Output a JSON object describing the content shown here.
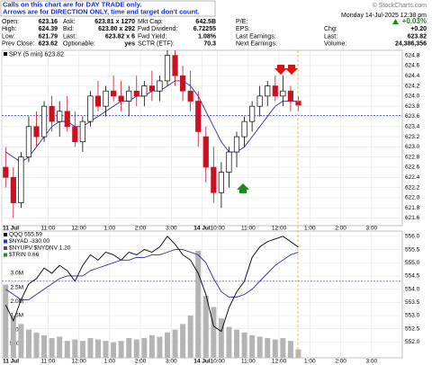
{
  "note": [
    "Calls on this chart are for DAY TRADE only.",
    "Arrows are for DIRECTION ONLY, time and target don't count."
  ],
  "watermark": "© StockCharts.com",
  "date": "Monday 14-Jul-2025 12:38 pm",
  "quote": [
    [
      [
        "Open:",
        "623.16"
      ],
      [
        "Ask:",
        "623.81 x 1270"
      ],
      [
        "Mkt Cap:",
        "642.5B"
      ],
      [
        "P/E:"
      ],
      [
        "+0.03%"
      ]
    ],
    [
      [
        "High:",
        "624.39"
      ],
      [
        "Bid:",
        "623.80 x 292"
      ],
      [
        "Fwd Dividend:",
        "6.72255"
      ],
      [
        "EPS:"
      ],
      [
        "Chg:",
        "+0.20"
      ]
    ],
    [
      [
        "Low:",
        "621.79"
      ],
      [
        "Last:",
        "623.82 x 6"
      ],
      [
        "Fwd Yield:",
        "1.08%"
      ],
      [
        "Last Earnings:"
      ],
      [
        "Last:",
        "623.82"
      ]
    ],
    [
      [
        "Prev Close:",
        "623.62"
      ],
      [
        "Optionable:",
        "yes"
      ],
      [
        "SCTR (ETF):",
        "70.3"
      ],
      [
        "Next Earnings:"
      ],
      [
        "Volume:",
        "24,386,356"
      ]
    ]
  ],
  "chart_data": [
    {
      "type": "candlestick",
      "legend": "SPY (5 min) 623.82",
      "categories": [
        "11 Jul",
        null,
        null,
        null,
        null,
        null,
        "11:00",
        null,
        null,
        null,
        "12:00",
        null,
        null,
        null,
        "1:00",
        null,
        null,
        null,
        "2:00",
        null,
        null,
        null,
        "3:00",
        null,
        null,
        null,
        "14 Jul",
        null,
        "10:00",
        null,
        null,
        null,
        "11:00",
        null,
        null,
        null,
        "12:00",
        null,
        null,
        null,
        "1:00",
        null,
        null,
        null,
        "2:00",
        null,
        null,
        null,
        "3:00",
        null,
        null,
        null
      ],
      "open": [
        622.6,
        622.4,
        621.9,
        622.8,
        623.4,
        623.2,
        623.8,
        623.5,
        623.7,
        623.4,
        623.1,
        623.5,
        624.0,
        623.8,
        624.1,
        624.0,
        623.9,
        624.1,
        624.0,
        624.2,
        624.1,
        624.3,
        624.8,
        624.4,
        624.1,
        623.9,
        623.2,
        622.6,
        622.1,
        622.5,
        622.9,
        623.2,
        623.5,
        623.8,
        624.0,
        624.2,
        624.0,
        624.1,
        623.9,
        null,
        null,
        null,
        null,
        null,
        null,
        null,
        null,
        null,
        null,
        null,
        null,
        null
      ],
      "high": [
        623.0,
        622.6,
        622.9,
        623.6,
        623.7,
        623.9,
        624.0,
        623.9,
        624.0,
        623.7,
        623.6,
        624.1,
        624.3,
        624.2,
        624.4,
        624.3,
        624.2,
        624.4,
        624.3,
        624.5,
        624.4,
        624.9,
        624.9,
        624.6,
        624.5,
        624.1,
        623.4,
        623.0,
        622.7,
        623.0,
        623.3,
        623.6,
        623.9,
        624.2,
        624.3,
        624.4,
        624.4,
        624.2,
        624.0,
        null,
        null,
        null,
        null,
        null,
        null,
        null,
        null,
        null,
        null,
        null,
        null,
        null
      ],
      "low": [
        622.2,
        621.6,
        621.8,
        622.7,
        623.0,
        623.1,
        623.3,
        623.2,
        623.3,
        623.0,
        622.9,
        623.4,
        623.7,
        623.6,
        623.9,
        623.7,
        623.6,
        623.8,
        623.8,
        623.9,
        623.9,
        624.2,
        624.2,
        623.9,
        623.7,
        623.0,
        622.3,
        621.9,
        621.8,
        622.2,
        622.6,
        623.0,
        623.3,
        623.6,
        623.8,
        623.9,
        623.8,
        623.7,
        623.7,
        null,
        null,
        null,
        null,
        null,
        null,
        null,
        null,
        null,
        null,
        null,
        null,
        null
      ],
      "close": [
        622.4,
        621.9,
        622.8,
        623.4,
        623.2,
        623.8,
        623.5,
        623.7,
        623.4,
        623.1,
        623.5,
        624.0,
        623.8,
        624.1,
        624.0,
        623.9,
        624.1,
        624.0,
        624.2,
        624.1,
        624.3,
        624.8,
        624.4,
        624.1,
        623.9,
        623.3,
        622.6,
        622.1,
        622.5,
        622.9,
        623.2,
        623.5,
        623.8,
        624.0,
        624.2,
        624.0,
        624.1,
        623.9,
        623.82,
        null,
        null,
        null,
        null,
        null,
        null,
        null,
        null,
        null,
        null,
        null,
        null,
        null
      ],
      "up_color": "#000000",
      "down_color": "#cc1020",
      "series": [
        {
          "color": "#2a2aa8",
          "values": [
            622.9,
            622.8,
            622.7,
            622.8,
            623.0,
            623.2,
            623.4,
            623.5,
            623.5,
            623.4,
            623.4,
            623.5,
            623.6,
            623.7,
            623.8,
            623.9,
            623.9,
            624.0,
            624.0,
            624.1,
            624.1,
            624.2,
            624.3,
            624.3,
            624.2,
            624.0,
            623.7,
            623.4,
            623.1,
            622.9,
            622.9,
            623.0,
            623.2,
            623.4,
            623.6,
            623.8,
            623.9,
            623.9,
            623.9,
            null,
            null,
            null,
            null,
            null,
            null,
            null,
            null,
            null,
            null,
            null,
            null,
            null
          ]
        }
      ],
      "reference_line": 623.62,
      "reference_color": "#2a2ad0",
      "ylim": [
        621.45,
        624.9
      ],
      "yticks": [
        621.6,
        621.8,
        {
          "value": 622,
          "label": "622.0"
        },
        622.2,
        622.4,
        622.6,
        622.8,
        {
          "value": 623,
          "label": "623.0"
        },
        623.2,
        623.4,
        623.6,
        623.8,
        {
          "value": 624,
          "label": "624.0"
        },
        624.2,
        624.4,
        624.6,
        624.8
      ],
      "grid": true
    },
    {
      "type": "line",
      "legend": [
        {
          "text": "QQQ 555.59",
          "color": "#000000"
        },
        {
          "text": "$NYAD -330.00",
          "color": "#2a2ad0"
        },
        {
          "text": "$NYUPV:$NYDNV 1.20",
          "color": "#555555"
        },
        {
          "text": "$TRIN 0.66",
          "color": "#2a8a2a"
        }
      ],
      "categories": [
        "11 Jul",
        null,
        null,
        null,
        null,
        null,
        "11:00",
        null,
        null,
        null,
        "12:00",
        null,
        null,
        null,
        "1:00",
        null,
        null,
        null,
        "2:00",
        null,
        null,
        null,
        "3:00",
        null,
        null,
        null,
        "14 Jul",
        null,
        "10:00",
        null,
        null,
        null,
        "11:00",
        null,
        null,
        null,
        "12:00",
        null,
        null,
        null,
        "1:00",
        null,
        null,
        null,
        "2:00",
        null,
        null,
        null,
        "3:00",
        null,
        null,
        null
      ],
      "series": [
        {
          "color": "#b4b4b4",
          "axis": "y2",
          "kind": "bar",
          "values": [
            2600000,
            1500000,
            1200000,
            1000000,
            900000,
            800000,
            700000,
            750000,
            600000,
            650000,
            600000,
            700000,
            650000,
            600000,
            550000,
            600000,
            700000,
            650000,
            700000,
            800000,
            750000,
            900000,
            1000000,
            1200000,
            1500000,
            3800000,
            2200000,
            1800000,
            1400000,
            1100000,
            1000000,
            900000,
            800000,
            750000,
            700000,
            650000,
            700000,
            600000,
            300000,
            null,
            null,
            null,
            null,
            null,
            null,
            null,
            null,
            null,
            null,
            null,
            null,
            null
          ]
        },
        {
          "color": "#2a2aa8",
          "values": [
            554.0,
            553.8,
            553.6,
            553.6,
            553.8,
            554.0,
            554.2,
            554.4,
            554.5,
            554.5,
            554.5,
            554.7,
            554.8,
            554.9,
            555.0,
            555.1,
            555.1,
            555.2,
            555.2,
            555.3,
            555.3,
            555.4,
            555.5,
            555.5,
            555.4,
            555.3,
            555.0,
            554.4,
            553.9,
            553.7,
            553.7,
            553.8,
            554.0,
            554.3,
            554.6,
            554.9,
            555.1,
            555.3,
            555.4,
            null,
            null,
            null,
            null,
            null,
            null,
            null,
            null,
            null,
            null,
            null,
            null,
            null
          ]
        },
        {
          "color": "#000000",
          "values": [
            553.4,
            552.8,
            553.6,
            554.2,
            554.4,
            554.8,
            554.6,
            554.9,
            554.7,
            554.3,
            554.9,
            555.3,
            555.1,
            555.4,
            555.3,
            555.1,
            555.4,
            555.3,
            555.5,
            555.4,
            555.6,
            556.0,
            555.7,
            555.3,
            555.1,
            554.6,
            553.8,
            552.6,
            552.4,
            553.3,
            553.9,
            554.3,
            555.2,
            555.6,
            555.8,
            555.9,
            556.0,
            555.8,
            555.59,
            null,
            null,
            null,
            null,
            null,
            null,
            null,
            null,
            null,
            null,
            null,
            null,
            null
          ]
        }
      ],
      "reference_line": 554.3,
      "reference_color": "#2a2ad0",
      "ylim": [
        551.4,
        556.2
      ],
      "yticks": [
        {
          "value": 552,
          "label": "552.0"
        },
        552.5,
        {
          "value": 553,
          "label": "553.0"
        },
        553.5,
        {
          "value": 554,
          "label": "554.0"
        },
        554.5,
        {
          "value": 555,
          "label": "555.0"
        },
        555.5,
        {
          "value": 556,
          "label": "556.0"
        }
      ],
      "y2lim": [
        0,
        4500000
      ],
      "y2ticks": [
        {
          "value": 500000,
          "label": "500K"
        },
        {
          "value": 1000000,
          "label": "1.0M"
        },
        {
          "value": 1500000,
          "label": "1.5M"
        },
        {
          "value": 2000000,
          "label": "2.0M"
        },
        {
          "value": 2500000,
          "label": "2.5M"
        },
        {
          "value": 3000000,
          "label": "3.0M"
        }
      ],
      "grid": true
    }
  ]
}
